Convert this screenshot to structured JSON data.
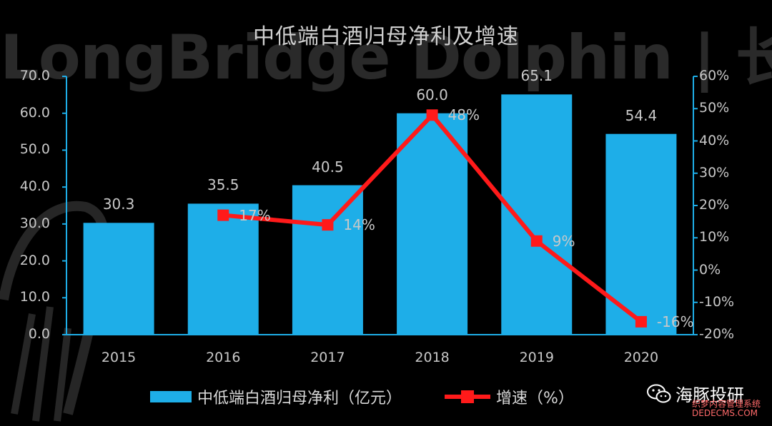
{
  "watermark": {
    "text": "LongBridge Dolphin | 长桥海豚投研"
  },
  "chart_data": {
    "type": "bar",
    "title": "中低端白酒归母净利及增速",
    "categories": [
      "2015",
      "2016",
      "2017",
      "2018",
      "2019",
      "2020"
    ],
    "series": [
      {
        "name": "中低端白酒归母净利（亿元）",
        "type": "bar",
        "axis": "left",
        "values": [
          30.3,
          35.5,
          40.5,
          60.0,
          65.1,
          54.4
        ],
        "labels": [
          "30.3",
          "35.5",
          "40.5",
          "60.0",
          "65.1",
          "54.4"
        ],
        "color": "#1EAEE8"
      },
      {
        "name": "增速（%）",
        "type": "line",
        "axis": "right",
        "x": [
          "2016",
          "2017",
          "2018",
          "2019",
          "2020"
        ],
        "values": [
          17,
          14,
          48,
          9,
          -16
        ],
        "labels": [
          "17%",
          "14%",
          "48%",
          "9%",
          "-16%"
        ],
        "color": "#FF1A1A"
      }
    ],
    "y_left": {
      "ylim": [
        0,
        70
      ],
      "ticks": [
        "0.0",
        "10.0",
        "20.0",
        "30.0",
        "40.0",
        "50.0",
        "60.0",
        "70.0"
      ]
    },
    "y_right": {
      "ylim": [
        -20,
        60
      ],
      "ticks": [
        "-20%",
        "-10%",
        "0%",
        "10%",
        "20%",
        "30%",
        "40%",
        "50%",
        "60%"
      ]
    },
    "legend": "bottom",
    "grid": false
  },
  "brand": {
    "name": "海豚投研"
  },
  "site": {
    "line1": "织梦内容管理系统",
    "line2": "DEDECMS.COM"
  }
}
